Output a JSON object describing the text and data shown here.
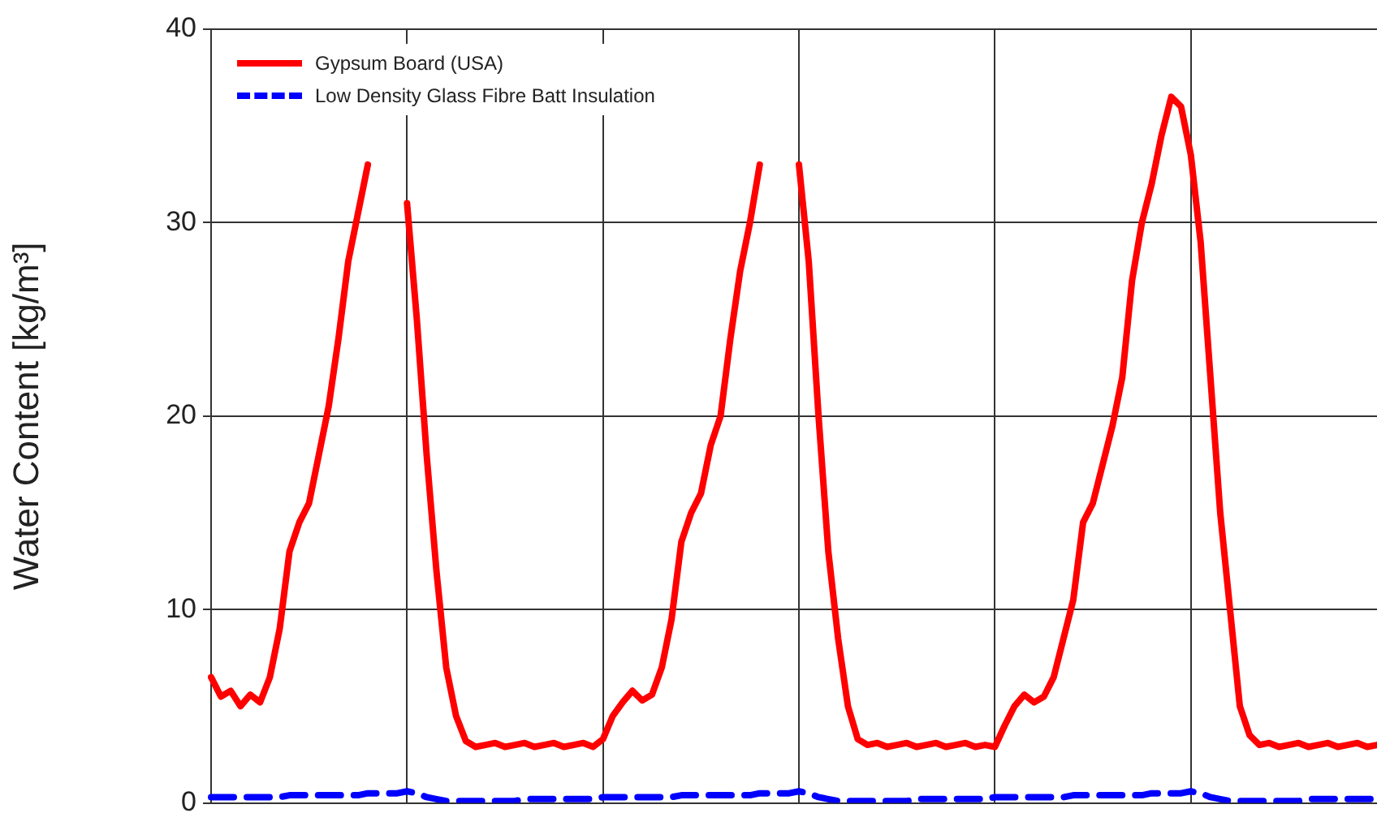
{
  "chart_data": {
    "type": "line",
    "ylabel": "Water Content [kg/m³]",
    "categories": [
      null,
      null,
      null,
      null,
      null,
      null,
      null,
      null,
      null,
      null,
      null,
      null,
      null,
      null,
      null,
      null,
      null,
      null,
      null,
      null,
      null,
      null,
      null,
      null,
      null,
      null,
      null,
      null,
      null,
      null,
      null,
      null,
      null,
      null,
      null,
      null,
      null,
      null,
      null,
      null,
      null,
      null,
      null,
      null,
      null,
      null,
      null,
      null,
      null,
      null,
      null,
      null,
      null,
      null,
      null,
      null,
      null,
      null,
      null,
      null,
      null,
      null,
      null,
      null,
      null,
      null,
      null,
      null,
      null,
      null,
      null,
      null,
      null,
      null,
      null,
      null,
      null,
      null,
      null,
      null,
      null,
      null,
      null,
      null,
      null,
      null,
      null,
      null,
      null,
      null,
      null,
      null,
      null,
      null,
      null,
      null,
      null,
      null,
      null,
      null,
      null,
      null,
      null,
      null,
      null,
      null,
      null,
      null,
      null,
      null,
      null,
      null,
      null,
      null,
      null,
      null,
      null,
      null,
      null,
      null
    ],
    "ylim": [
      0,
      40
    ],
    "yticks": [
      0,
      10,
      20,
      30,
      40
    ],
    "grid": true,
    "legend": "top left",
    "tick_labels": "y",
    "marker": "none",
    "series": [
      {
        "name": "Gypsum Board (USA)",
        "color": "#ff0000",
        "line_style": "solid",
        "values": [
          6.5,
          5.5,
          5.8,
          5.0,
          5.6,
          5.2,
          6.5,
          9,
          13,
          14.5,
          15.5,
          18,
          20.5,
          24,
          28,
          30.5,
          33,
          null,
          null,
          null,
          31,
          25,
          18,
          12,
          7,
          4.5,
          3.2,
          2.9,
          3.0,
          3.1,
          2.9,
          3.0,
          3.1,
          2.9,
          3.0,
          3.1,
          2.9,
          3.0,
          3.1,
          2.9,
          3.3,
          4.5,
          5.2,
          5.8,
          5.3,
          5.6,
          7,
          9.5,
          13.5,
          15,
          16,
          18.5,
          20,
          24,
          27.5,
          30,
          33,
          null,
          null,
          null,
          33,
          28,
          20,
          13,
          8.5,
          5,
          3.3,
          3.0,
          3.1,
          2.9,
          3.0,
          3.1,
          2.9,
          3.0,
          3.1,
          2.9,
          3.0,
          3.1,
          2.9,
          3.0,
          2.9,
          4,
          5,
          5.6,
          5.2,
          5.5,
          6.5,
          8.5,
          10.5,
          14.5,
          15.5,
          17.5,
          19.5,
          22,
          27,
          30,
          32,
          34.5,
          36.5,
          36,
          33.5,
          29,
          22,
          15,
          10,
          5,
          3.5,
          3.0,
          3.1,
          2.9,
          3.0,
          3.1,
          2.9,
          3.0,
          3.1,
          2.9,
          3.0,
          3.1,
          2.9,
          3.0
        ]
      },
      {
        "name": "Low Density Glass Fibre Batt Insulation",
        "color": "#0000ff",
        "line_style": "dashed",
        "values": [
          0.3,
          0.3,
          0.3,
          0.3,
          0.3,
          0.3,
          0.3,
          0.3,
          0.4,
          0.4,
          0.4,
          0.4,
          0.4,
          0.4,
          0.4,
          0.4,
          0.5,
          0.5,
          0.5,
          0.5,
          0.6,
          0.5,
          0.3,
          0.2,
          0.1,
          0.1,
          0.1,
          0.1,
          0.1,
          0.1,
          0.1,
          0.1,
          0.2,
          0.2,
          0.2,
          0.2,
          0.2,
          0.2,
          0.2,
          0.2,
          0.3,
          0.3,
          0.3,
          0.3,
          0.3,
          0.3,
          0.3,
          0.3,
          0.4,
          0.4,
          0.4,
          0.4,
          0.4,
          0.4,
          0.4,
          0.4,
          0.5,
          0.5,
          0.5,
          0.5,
          0.6,
          0.5,
          0.3,
          0.2,
          0.1,
          0.1,
          0.1,
          0.1,
          0.1,
          0.1,
          0.1,
          0.1,
          0.2,
          0.2,
          0.2,
          0.2,
          0.2,
          0.2,
          0.2,
          0.2,
          0.3,
          0.3,
          0.3,
          0.3,
          0.3,
          0.3,
          0.3,
          0.3,
          0.4,
          0.4,
          0.4,
          0.4,
          0.4,
          0.4,
          0.4,
          0.4,
          0.5,
          0.5,
          0.5,
          0.5,
          0.6,
          0.5,
          0.3,
          0.2,
          0.1,
          0.1,
          0.1,
          0.1,
          0.1,
          0.1,
          0.1,
          0.1,
          0.2,
          0.2,
          0.2,
          0.2,
          0.2,
          0.2,
          0.2,
          0.2
        ]
      }
    ]
  }
}
